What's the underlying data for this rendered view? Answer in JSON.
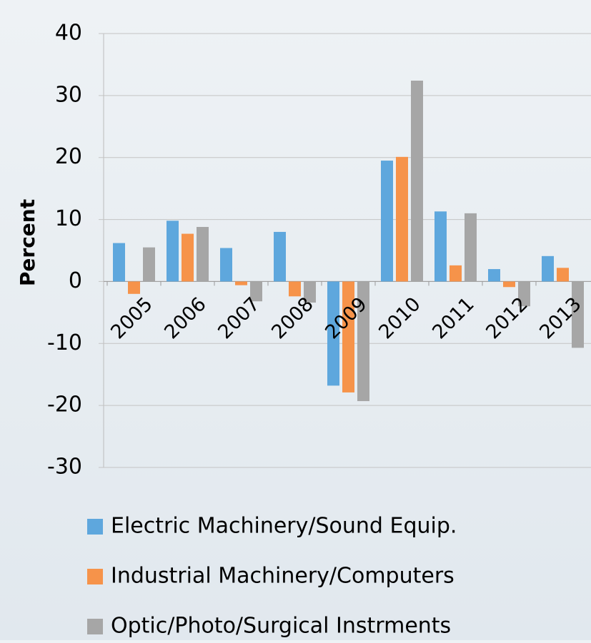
{
  "chart_data": {
    "type": "bar",
    "y_label": "Percent",
    "categories": [
      "2005",
      "2006",
      "2007",
      "2008",
      "2009",
      "2010",
      "2011",
      "2012",
      "2013"
    ],
    "series": [
      {
        "name": "Electric Machinery/Sound Equip.",
        "color": "#5ea7dd",
        "values": [
          6.2,
          9.8,
          5.4,
          8.0,
          -16.8,
          19.5,
          11.3,
          2.0,
          4.1
        ]
      },
      {
        "name": "Industrial Machinery/Computers",
        "color": "#f6934a",
        "values": [
          -2.0,
          7.7,
          -0.6,
          -2.4,
          -17.9,
          20.1,
          2.6,
          -0.9,
          2.2
        ]
      },
      {
        "name": "Optic/Photo/Surgical Instrments",
        "color": "#a6a6a6",
        "values": [
          5.5,
          8.8,
          -3.2,
          -3.4,
          -19.3,
          32.4,
          11.0,
          -4.0,
          -10.7
        ]
      }
    ],
    "ylim": [
      -30,
      40
    ],
    "yticks": [
      -30,
      -20,
      -10,
      0,
      10,
      20,
      30,
      40
    ],
    "grid": true,
    "legend": "bottom"
  }
}
